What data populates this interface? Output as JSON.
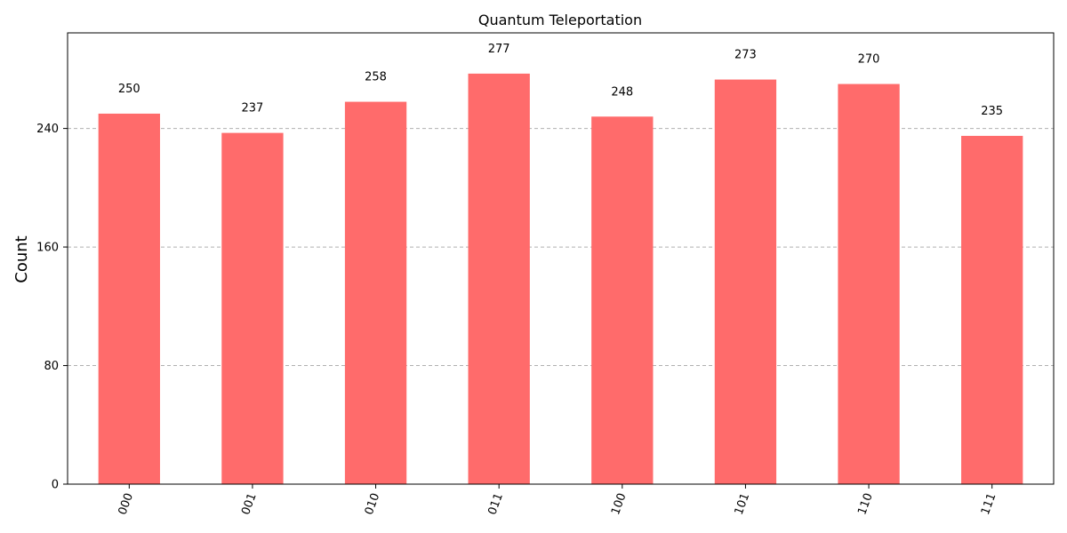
{
  "chart_data": {
    "type": "bar",
    "title": "Quantum Teleportation",
    "xlabel": "",
    "ylabel": "Count",
    "categories": [
      "000",
      "001",
      "010",
      "011",
      "100",
      "101",
      "110",
      "111"
    ],
    "values": [
      250,
      237,
      258,
      277,
      248,
      273,
      270,
      235
    ],
    "value_labels": [
      "250",
      "237",
      "258",
      "277",
      "248",
      "273",
      "270",
      "235"
    ],
    "ylim": [
      0,
      304.5
    ],
    "yticks": [
      0,
      80,
      160,
      240
    ],
    "ytick_labels": [
      "0",
      "80",
      "160",
      "240"
    ],
    "grid": "horizontal dashed",
    "bar_color": "#ff6b6b",
    "grid_color": "#b0b0b0",
    "xtick_rotation": "70 degrees"
  }
}
